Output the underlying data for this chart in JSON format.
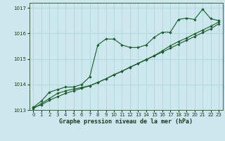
{
  "title": "Graphe pression niveau de la mer (hPa)",
  "background_color": "#cce8ee",
  "grid_color": "#b0d4da",
  "line_color": "#1a5c2a",
  "xlim": [
    -0.5,
    23.5
  ],
  "ylim": [
    1013.0,
    1017.2
  ],
  "yticks": [
    1013,
    1014,
    1015,
    1016,
    1017
  ],
  "xticks": [
    0,
    1,
    2,
    3,
    4,
    5,
    6,
    7,
    8,
    9,
    10,
    11,
    12,
    13,
    14,
    15,
    16,
    17,
    18,
    19,
    20,
    21,
    22,
    23
  ],
  "series1_x": [
    0,
    1,
    2,
    3,
    4,
    5,
    6,
    7,
    8,
    9,
    10,
    11,
    12,
    13,
    14,
    15,
    16,
    17,
    18,
    19,
    20,
    21,
    22,
    23
  ],
  "series1_y": [
    1013.1,
    1013.35,
    1013.7,
    1013.8,
    1013.9,
    1013.9,
    1014.0,
    1014.3,
    1015.55,
    1015.78,
    1015.78,
    1015.55,
    1015.45,
    1015.45,
    1015.55,
    1015.85,
    1016.05,
    1016.05,
    1016.55,
    1016.6,
    1016.55,
    1016.95,
    1016.58,
    1016.5
  ],
  "series2_x": [
    0,
    1,
    2,
    3,
    4,
    5,
    6,
    7,
    8,
    9,
    10,
    11,
    12,
    13,
    14,
    15,
    16,
    17,
    18,
    19,
    20,
    21,
    22,
    23
  ],
  "series2_y": [
    1013.1,
    1013.2,
    1013.38,
    1013.52,
    1013.65,
    1013.75,
    1013.85,
    1013.95,
    1014.08,
    1014.22,
    1014.38,
    1014.52,
    1014.67,
    1014.82,
    1014.97,
    1015.12,
    1015.27,
    1015.42,
    1015.58,
    1015.73,
    1015.88,
    1016.03,
    1016.18,
    1016.38
  ],
  "series3_x": [
    0,
    1,
    2,
    3,
    4,
    5,
    6,
    7,
    8,
    9,
    10,
    11,
    12,
    13,
    14,
    15,
    16,
    17,
    18,
    19,
    20,
    21,
    22,
    23
  ],
  "series3_y": [
    1013.05,
    1013.25,
    1013.45,
    1013.65,
    1013.75,
    1013.82,
    1013.88,
    1013.95,
    1014.08,
    1014.22,
    1014.38,
    1014.52,
    1014.68,
    1014.83,
    1014.98,
    1015.13,
    1015.32,
    1015.52,
    1015.68,
    1015.82,
    1015.98,
    1016.13,
    1016.28,
    1016.45
  ]
}
